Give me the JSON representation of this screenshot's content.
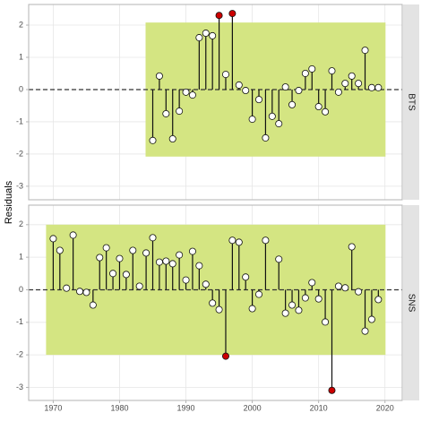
{
  "y_label": "Residuals",
  "chart_data": [
    {
      "type": "lollipop",
      "strip": "BTS",
      "band": 2.08,
      "band_color": "#d4e582",
      "point_color": "#ffffff",
      "outlier_color": "#cc0000",
      "x": [
        1985,
        1986,
        1987,
        1988,
        1989,
        1990,
        1991,
        1992,
        1993,
        1994,
        1995,
        1996,
        1997,
        1998,
        1999,
        2000,
        2001,
        2002,
        2003,
        2004,
        2005,
        2006,
        2007,
        2008,
        2009,
        2010,
        2011,
        2012,
        2013,
        2014,
        2015,
        2016,
        2017,
        2018,
        2019
      ],
      "values": [
        -1.58,
        0.42,
        -0.75,
        -1.53,
        -0.67,
        -0.08,
        -0.17,
        1.61,
        1.75,
        1.67,
        2.3,
        0.47,
        2.36,
        0.14,
        -0.03,
        -0.92,
        -0.31,
        -1.5,
        -0.83,
        -1.06,
        0.08,
        -0.47,
        -0.03,
        0.5,
        0.64,
        -0.53,
        -0.69,
        0.58,
        -0.08,
        0.19,
        0.42,
        0.19,
        1.22,
        0.06,
        0.06
      ],
      "xlim": [
        1966.3,
        2022.6
      ],
      "xticks": [
        1970,
        1980,
        1990,
        2000,
        2010,
        2020
      ],
      "ylim": [
        -3.42,
        2.64
      ],
      "yticks": [
        -3,
        -2,
        -1,
        0,
        1,
        2
      ],
      "grid": true
    },
    {
      "type": "lollipop",
      "strip": "SNS",
      "band": 2.0,
      "band_color": "#d4e582",
      "point_color": "#ffffff",
      "outlier_color": "#cc0000",
      "x": [
        1970,
        1971,
        1972,
        1973,
        1974,
        1975,
        1976,
        1977,
        1978,
        1979,
        1980,
        1981,
        1982,
        1983,
        1984,
        1985,
        1986,
        1987,
        1988,
        1989,
        1990,
        1991,
        1992,
        1993,
        1994,
        1995,
        1996,
        1997,
        1998,
        1999,
        2000,
        2001,
        2002,
        2004,
        2005,
        2006,
        2007,
        2008,
        2009,
        2010,
        2011,
        2012,
        2013,
        2014,
        2015,
        2016,
        2017,
        2018,
        2019
      ],
      "values": [
        1.57,
        1.21,
        0.05,
        1.68,
        -0.05,
        -0.08,
        -0.47,
        0.99,
        1.29,
        0.5,
        0.96,
        0.47,
        1.21,
        0.11,
        1.13,
        1.6,
        0.85,
        0.88,
        0.8,
        1.07,
        0.3,
        1.18,
        0.74,
        0.17,
        -0.41,
        -0.61,
        -2.04,
        1.52,
        1.46,
        0.39,
        -0.58,
        -0.14,
        1.52,
        0.94,
        -0.72,
        -0.47,
        -0.63,
        -0.25,
        0.22,
        -0.28,
        -0.99,
        -3.09,
        0.11,
        0.06,
        1.32,
        -0.06,
        -1.27,
        -0.91,
        -0.3
      ],
      "xlim": [
        1966.3,
        2022.6
      ],
      "xticks": [
        1970,
        1980,
        1990,
        2000,
        2010,
        2020
      ],
      "ylim": [
        -3.4,
        2.6
      ],
      "yticks": [
        -3,
        -2,
        -1,
        0,
        1,
        2
      ],
      "grid": true
    }
  ]
}
